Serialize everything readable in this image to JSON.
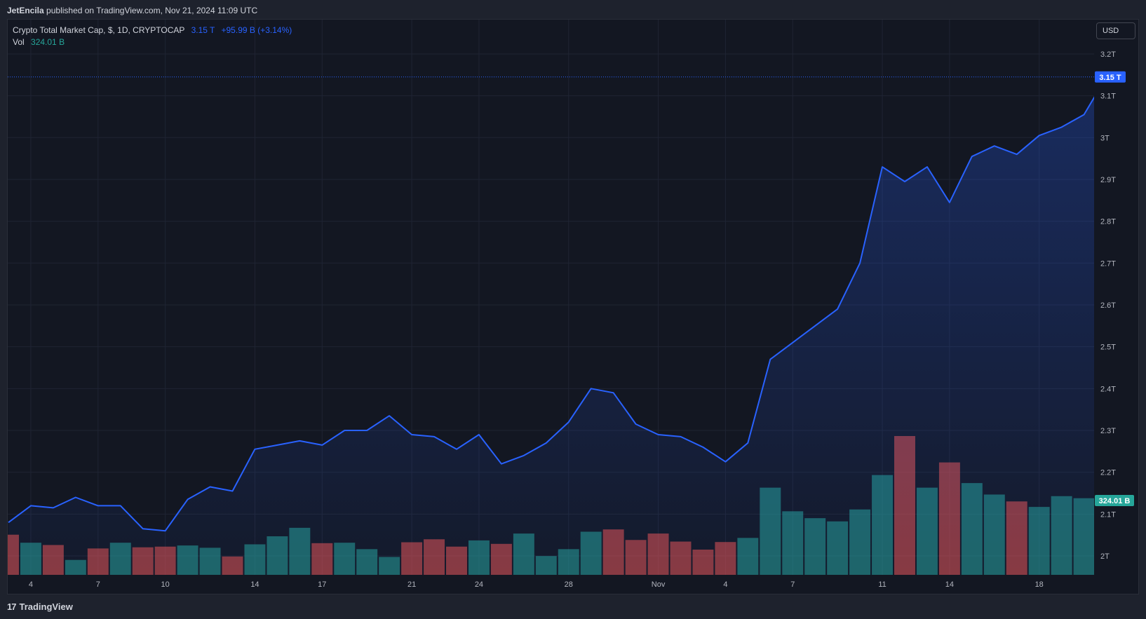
{
  "header": {
    "author": "JetEncila",
    "published_text": "published on TradingView.com, Nov 21, 2024 11:09 UTC"
  },
  "legend": {
    "title": "Crypto Total Market Cap, $, 1D, CRYPTOCAP",
    "price": "3.15 T",
    "change": "+95.99 B (+3.14%)",
    "vol_label": "Vol",
    "vol_value": "324.01 B"
  },
  "currency_button": "USD",
  "footer": {
    "logo_mark": "17",
    "logo_text": "TradingView"
  },
  "colors": {
    "line": "#2962ff",
    "up_volume": "#26a69a",
    "down_volume": "#ef5350",
    "last_price_tag": "#2962ff",
    "last_volume_tag": "#26a69a"
  },
  "chart_data": {
    "type": "area",
    "ylim": [
      1.95,
      3.24
    ],
    "y_ticks": [
      2.0,
      2.1,
      2.2,
      2.3,
      2.4,
      2.5,
      2.6,
      2.7,
      2.8,
      2.9,
      3.0,
      3.1,
      3.2
    ],
    "y_tick_labels": [
      "2T",
      "2.1T",
      "2.2T",
      "2.3T",
      "2.4T",
      "2.5T",
      "2.6T",
      "2.7T",
      "2.8T",
      "2.9T",
      "3T",
      "3.1T",
      "3.2T"
    ],
    "x_tick_labels": [
      {
        "label": "4",
        "date": "2024-10-04"
      },
      {
        "label": "7",
        "date": "2024-10-07"
      },
      {
        "label": "10",
        "date": "2024-10-10"
      },
      {
        "label": "14",
        "date": "2024-10-14"
      },
      {
        "label": "17",
        "date": "2024-10-17"
      },
      {
        "label": "21",
        "date": "2024-10-21"
      },
      {
        "label": "24",
        "date": "2024-10-24"
      },
      {
        "label": "28",
        "date": "2024-10-28"
      },
      {
        "label": "Nov",
        "date": "2024-11-01"
      },
      {
        "label": "4",
        "date": "2024-11-04"
      },
      {
        "label": "7",
        "date": "2024-11-07"
      },
      {
        "label": "11",
        "date": "2024-11-11"
      },
      {
        "label": "14",
        "date": "2024-11-14"
      },
      {
        "label": "18",
        "date": "2024-11-18"
      }
    ],
    "last_price_label": "3.15 T",
    "last_volume_label": "324.01 B",
    "series": [
      {
        "name": "Crypto Total Market Cap",
        "dates": [
          "2024-10-03",
          "2024-10-04",
          "2024-10-05",
          "2024-10-06",
          "2024-10-07",
          "2024-10-08",
          "2024-10-09",
          "2024-10-10",
          "2024-10-11",
          "2024-10-12",
          "2024-10-13",
          "2024-10-14",
          "2024-10-15",
          "2024-10-16",
          "2024-10-17",
          "2024-10-18",
          "2024-10-19",
          "2024-10-20",
          "2024-10-21",
          "2024-10-22",
          "2024-10-23",
          "2024-10-24",
          "2024-10-25",
          "2024-10-26",
          "2024-10-27",
          "2024-10-28",
          "2024-10-29",
          "2024-10-30",
          "2024-10-31",
          "2024-11-01",
          "2024-11-02",
          "2024-11-03",
          "2024-11-04",
          "2024-11-05",
          "2024-11-06",
          "2024-11-07",
          "2024-11-08",
          "2024-11-09",
          "2024-11-10",
          "2024-11-11",
          "2024-11-12",
          "2024-11-13",
          "2024-11-14",
          "2024-11-15",
          "2024-11-16",
          "2024-11-17",
          "2024-11-18",
          "2024-11-19",
          "2024-11-20",
          "2024-11-21"
        ],
        "values": [
          2.08,
          2.12,
          2.115,
          2.14,
          2.12,
          2.12,
          2.065,
          2.06,
          2.135,
          2.165,
          2.155,
          2.255,
          2.265,
          2.275,
          2.265,
          2.3,
          2.3,
          2.335,
          2.29,
          2.285,
          2.255,
          2.29,
          2.22,
          2.24,
          2.27,
          2.32,
          2.4,
          2.39,
          2.315,
          2.29,
          2.285,
          2.26,
          2.225,
          2.27,
          2.47,
          2.51,
          2.55,
          2.59,
          2.7,
          2.93,
          2.895,
          2.93,
          2.845,
          2.955,
          2.98,
          2.96,
          3.005,
          3.025,
          3.055,
          3.145
        ]
      },
      {
        "name": "Vol",
        "unit": "B",
        "values": [
          175,
          140,
          130,
          65,
          115,
          140,
          120,
          123,
          128,
          118,
          80,
          133,
          168,
          205,
          138,
          140,
          112,
          78,
          142,
          155,
          123,
          150,
          135,
          180,
          82,
          112,
          188,
          198,
          152,
          180,
          145,
          110,
          143,
          161,
          380,
          277,
          247,
          233,
          285,
          435,
          605,
          380,
          490,
          400,
          350,
          320,
          296,
          343,
          334,
          324
        ],
        "direction": [
          "down",
          "up",
          "down",
          "up",
          "down",
          "up",
          "down",
          "down",
          "up",
          "up",
          "down",
          "up",
          "up",
          "up",
          "down",
          "up",
          "up",
          "up",
          "down",
          "down",
          "down",
          "up",
          "down",
          "up",
          "up",
          "up",
          "up",
          "down",
          "down",
          "down",
          "down",
          "down",
          "down",
          "up",
          "up",
          "up",
          "up",
          "up",
          "up",
          "up",
          "down",
          "up",
          "down",
          "up",
          "up",
          "down",
          "up",
          "up",
          "up",
          "up"
        ]
      }
    ]
  }
}
